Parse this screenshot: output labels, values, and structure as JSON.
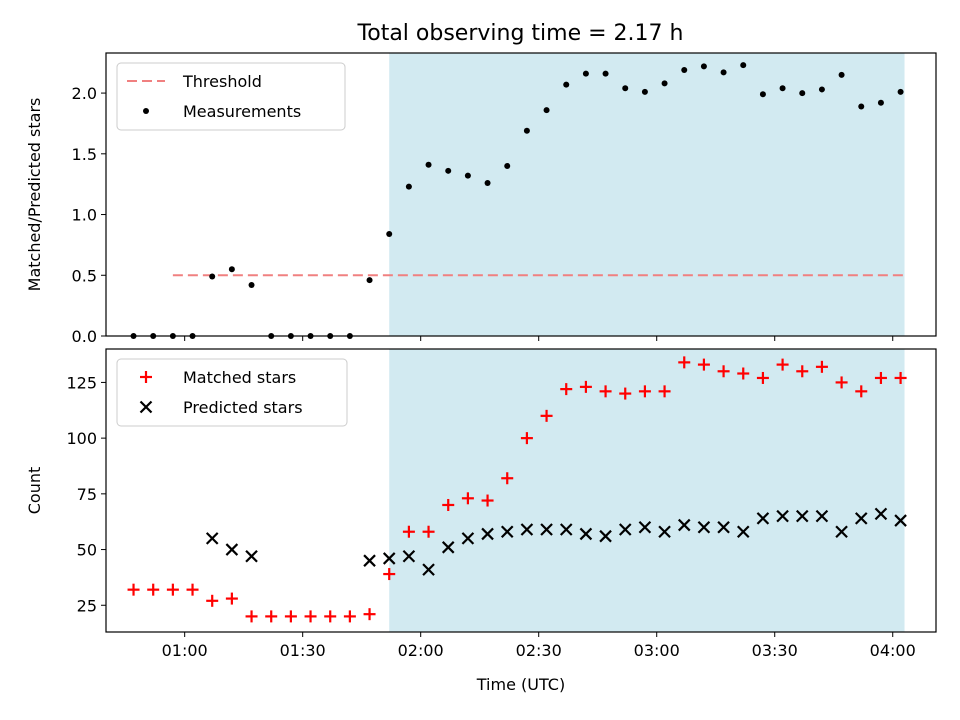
{
  "title": "Total observing time = 2.17 h",
  "colors": {
    "threshold": "#f08080",
    "measurement": "#000000",
    "matched": "#ff0000",
    "predicted": "#000000",
    "span": "#add8e6"
  },
  "chart_data": [
    {
      "type": "scatter",
      "ylabel": "Matched/Predicted stars",
      "xlabel": "",
      "ylim": [
        0,
        2.33
      ],
      "yticks": [
        0,
        0.5,
        1.0,
        1.5,
        2.0
      ],
      "ytick_labels": [
        "0.0",
        "0.5",
        "1.0",
        "1.5",
        "2.0"
      ],
      "legend": {
        "placement": "top-left",
        "entries": [
          "Threshold",
          "Measurements"
        ]
      },
      "shaded_span": {
        "start": "01:52",
        "end": "04:03"
      },
      "threshold": {
        "name": "Threshold",
        "y": 0.5,
        "x_start": "00:57",
        "x_end": "04:03"
      },
      "series": [
        {
          "name": "Measurements",
          "marker": "dot",
          "x": [
            "00:47",
            "00:52",
            "00:57",
            "01:02",
            "01:07",
            "01:12",
            "01:17",
            "01:22",
            "01:27",
            "01:32",
            "01:37",
            "01:42",
            "01:47",
            "01:52",
            "01:57",
            "02:02",
            "02:07",
            "02:12",
            "02:17",
            "02:22",
            "02:27",
            "02:32",
            "02:37",
            "02:42",
            "02:47",
            "02:52",
            "02:57",
            "03:02",
            "03:07",
            "03:12",
            "03:17",
            "03:22",
            "03:27",
            "03:32",
            "03:37",
            "03:42",
            "03:47",
            "03:52",
            "03:57",
            "04:02"
          ],
          "y": [
            0,
            0,
            0,
            0,
            0.49,
            0.55,
            0.42,
            0,
            0,
            0,
            0,
            0,
            0.46,
            0.84,
            1.23,
            1.41,
            1.36,
            1.32,
            1.26,
            1.4,
            1.69,
            1.86,
            2.07,
            2.16,
            2.16,
            2.04,
            2.01,
            2.08,
            2.19,
            2.22,
            2.17,
            2.23,
            1.99,
            2.04,
            2.0,
            2.03,
            2.15,
            1.89,
            1.92,
            2.01
          ]
        }
      ]
    },
    {
      "type": "scatter",
      "ylabel": "Count",
      "xlabel": "Time (UTC)",
      "ylim": [
        13,
        140
      ],
      "yticks": [
        25,
        50,
        75,
        100,
        125
      ],
      "ytick_labels": [
        "25",
        "50",
        "75",
        "100",
        "125"
      ],
      "xlim": [
        "00:40",
        "04:11"
      ],
      "xticks": [
        "01:00",
        "01:30",
        "02:00",
        "02:30",
        "03:00",
        "03:30",
        "04:00"
      ],
      "legend": {
        "placement": "top-left",
        "entries": [
          "Matched stars",
          "Predicted stars"
        ]
      },
      "shaded_span": {
        "start": "01:52",
        "end": "04:03"
      },
      "series": [
        {
          "name": "Matched stars",
          "marker": "plus",
          "x": [
            "00:47",
            "00:52",
            "00:57",
            "01:02",
            "01:07",
            "01:12",
            "01:17",
            "01:22",
            "01:27",
            "01:32",
            "01:37",
            "01:42",
            "01:47",
            "01:52",
            "01:57",
            "02:02",
            "02:07",
            "02:12",
            "02:17",
            "02:22",
            "02:27",
            "02:32",
            "02:37",
            "02:42",
            "02:47",
            "02:52",
            "02:57",
            "03:02",
            "03:07",
            "03:12",
            "03:17",
            "03:22",
            "03:27",
            "03:32",
            "03:37",
            "03:42",
            "03:47",
            "03:52",
            "03:57",
            "04:02"
          ],
          "y": [
            32,
            32,
            32,
            32,
            27,
            28,
            20,
            20,
            20,
            20,
            20,
            20,
            21,
            39,
            58,
            58,
            70,
            73,
            72,
            82,
            100,
            110,
            122,
            123,
            121,
            120,
            121,
            121,
            134,
            133,
            130,
            129,
            127,
            133,
            130,
            132,
            125,
            121,
            127,
            127
          ]
        },
        {
          "name": "Predicted stars",
          "marker": "x",
          "x": [
            "01:07",
            "01:12",
            "01:17",
            "01:47",
            "01:52",
            "01:57",
            "02:02",
            "02:07",
            "02:12",
            "02:17",
            "02:22",
            "02:27",
            "02:32",
            "02:37",
            "02:42",
            "02:47",
            "02:52",
            "02:57",
            "03:02",
            "03:07",
            "03:12",
            "03:17",
            "03:22",
            "03:27",
            "03:32",
            "03:37",
            "03:42",
            "03:47",
            "03:52",
            "03:57",
            "04:02"
          ],
          "y": [
            55,
            50,
            47,
            45,
            46,
            47,
            41,
            51,
            55,
            57,
            58,
            59,
            59,
            59,
            57,
            56,
            59,
            60,
            58,
            61,
            60,
            60,
            58,
            64,
            65,
            65,
            65,
            58,
            64,
            66,
            63
          ]
        }
      ]
    }
  ]
}
